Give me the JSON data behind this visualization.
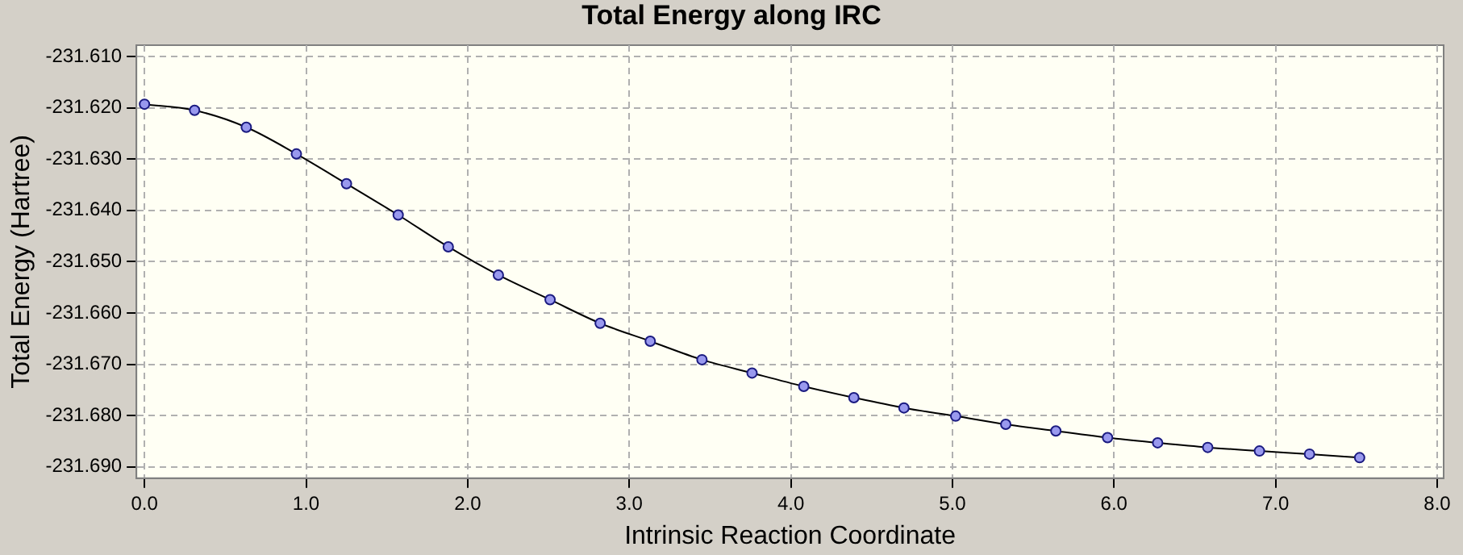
{
  "chart_data": {
    "type": "line",
    "title": "Total Energy along IRC",
    "xlabel": "Intrinsic Reaction Coordinate",
    "ylabel": "Total Energy (Hartree)",
    "x": [
      0,
      0.31,
      0.63,
      0.94,
      1.25,
      1.57,
      1.88,
      2.19,
      2.51,
      2.82,
      3.13,
      3.45,
      3.76,
      4.08,
      4.39,
      4.7,
      5.02,
      5.33,
      5.64,
      5.96,
      6.27,
      6.58,
      6.9,
      7.21,
      7.52
    ],
    "series": [
      {
        "color": "#000000",
        "values": [
          -231.6193,
          -231.6205,
          -231.6238,
          -231.629,
          -231.6348,
          -231.6409,
          -231.6471,
          -231.6526,
          -231.6574,
          -231.662,
          -231.6655,
          -231.6691,
          -231.6717,
          -231.6743,
          -231.6765,
          -231.6785,
          -231.6801,
          -231.6817,
          -231.683,
          -231.6843,
          -231.6853,
          -231.6862,
          -231.6869,
          -231.6875,
          -231.6882
        ]
      }
    ],
    "xlim": [
      -0.05,
      8.04
    ],
    "ylim": [
      -231.6922,
      -231.6078
    ],
    "xticks": [
      {
        "value": 0,
        "label": "0.0"
      },
      {
        "value": 1,
        "label": "1.0"
      },
      {
        "value": 2,
        "label": "2.0"
      },
      {
        "value": 3,
        "label": "3.0"
      },
      {
        "value": 4,
        "label": "4.0"
      },
      {
        "value": 5,
        "label": "5.0"
      },
      {
        "value": 6,
        "label": "6.0"
      },
      {
        "value": 7,
        "label": "7.0"
      },
      {
        "value": 8,
        "label": "8.0"
      }
    ],
    "yticks": [
      {
        "value": -231.61,
        "label": "-231.610"
      },
      {
        "value": -231.62,
        "label": "-231.620"
      },
      {
        "value": -231.63,
        "label": "-231.630"
      },
      {
        "value": -231.64,
        "label": "-231.640"
      },
      {
        "value": -231.65,
        "label": "-231.650"
      },
      {
        "value": -231.66,
        "label": "-231.660"
      },
      {
        "value": -231.67,
        "label": "-231.670"
      },
      {
        "value": -231.68,
        "label": "-231.680"
      },
      {
        "value": -231.69,
        "label": "-231.690"
      }
    ],
    "grid": true,
    "legend": false,
    "marker": "circle",
    "line_style": "solid"
  }
}
